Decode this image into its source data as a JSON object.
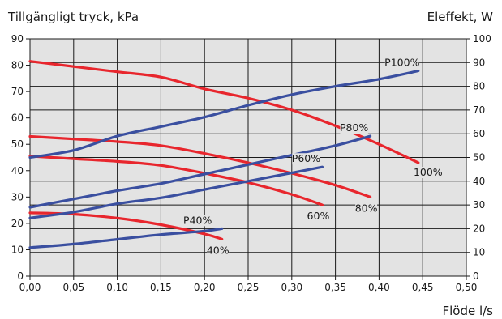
{
  "chart_data": {
    "type": "line",
    "left_axis_title": "Tillgängligt tryck, kPa",
    "right_axis_title": "Eleffekt, W",
    "xlabel": "Flöde l/s",
    "xlim": [
      0,
      0.5
    ],
    "ylim_left": [
      0,
      90
    ],
    "ylim_right": [
      0,
      100
    ],
    "x_ticks": [
      "0,00",
      "0,05",
      "0,10",
      "0,15",
      "0,20",
      "0,25",
      "0,30",
      "0,35",
      "0,40",
      "0,45",
      "0,50"
    ],
    "x_tick_values": [
      0,
      0.05,
      0.1,
      0.15,
      0.2,
      0.25,
      0.3,
      0.35,
      0.4,
      0.45,
      0.5
    ],
    "y_left_ticks": [
      0,
      10,
      20,
      30,
      40,
      50,
      60,
      70,
      80,
      90
    ],
    "y_right_ticks": [
      0,
      10,
      20,
      30,
      40,
      50,
      60,
      70,
      80,
      90,
      100
    ],
    "grid": true,
    "colors": {
      "pressure": "#e8262d",
      "power": "#3a4fa0",
      "plot_bg": "#e3e3e3",
      "grid": "#1a1a1a"
    },
    "series": [
      {
        "name": "100%",
        "axis": "left",
        "color": "#e8262d",
        "x": [
          0,
          0.05,
          0.1,
          0.15,
          0.2,
          0.25,
          0.3,
          0.35,
          0.4,
          0.445
        ],
        "y": [
          81.5,
          79.5,
          77.5,
          75.5,
          71,
          67.5,
          63,
          57,
          50,
          43
        ]
      },
      {
        "name": "80%",
        "axis": "left",
        "color": "#e8262d",
        "x": [
          0,
          0.05,
          0.1,
          0.15,
          0.2,
          0.25,
          0.3,
          0.35,
          0.39
        ],
        "y": [
          53,
          52,
          51,
          49.5,
          46.5,
          43,
          39,
          34.5,
          30
        ]
      },
      {
        "name": "60%",
        "axis": "left",
        "color": "#e8262d",
        "x": [
          0,
          0.05,
          0.1,
          0.15,
          0.2,
          0.25,
          0.3,
          0.335
        ],
        "y": [
          45.5,
          44.5,
          43.5,
          42,
          39,
          35.5,
          31,
          27
        ]
      },
      {
        "name": "40%",
        "axis": "left",
        "color": "#e8262d",
        "x": [
          0,
          0.05,
          0.1,
          0.15,
          0.2,
          0.22
        ],
        "y": [
          24,
          23.5,
          22,
          19.5,
          16,
          14
        ]
      },
      {
        "name": "P100%",
        "axis": "right",
        "color": "#3a4fa0",
        "x": [
          0,
          0.05,
          0.1,
          0.15,
          0.2,
          0.25,
          0.3,
          0.35,
          0.4,
          0.445
        ],
        "y": [
          50,
          53,
          59,
          63,
          67,
          72,
          76.5,
          80,
          83,
          86.5
        ]
      },
      {
        "name": "P80%",
        "axis": "right",
        "color": "#3a4fa0",
        "x": [
          0,
          0.05,
          0.1,
          0.15,
          0.2,
          0.25,
          0.3,
          0.35,
          0.39
        ],
        "y": [
          29,
          32.5,
          36,
          39,
          43,
          47,
          51,
          55,
          59
        ]
      },
      {
        "name": "P60%",
        "axis": "right",
        "color": "#3a4fa0",
        "x": [
          0,
          0.05,
          0.1,
          0.15,
          0.2,
          0.25,
          0.3,
          0.335
        ],
        "y": [
          24.5,
          27,
          30.5,
          33,
          36.5,
          40,
          43.5,
          46
        ]
      },
      {
        "name": "P40%",
        "axis": "right",
        "color": "#3a4fa0",
        "x": [
          0,
          0.05,
          0.1,
          0.15,
          0.2,
          0.22
        ],
        "y": [
          12,
          13.5,
          15.5,
          17.5,
          19,
          20
        ]
      }
    ]
  }
}
